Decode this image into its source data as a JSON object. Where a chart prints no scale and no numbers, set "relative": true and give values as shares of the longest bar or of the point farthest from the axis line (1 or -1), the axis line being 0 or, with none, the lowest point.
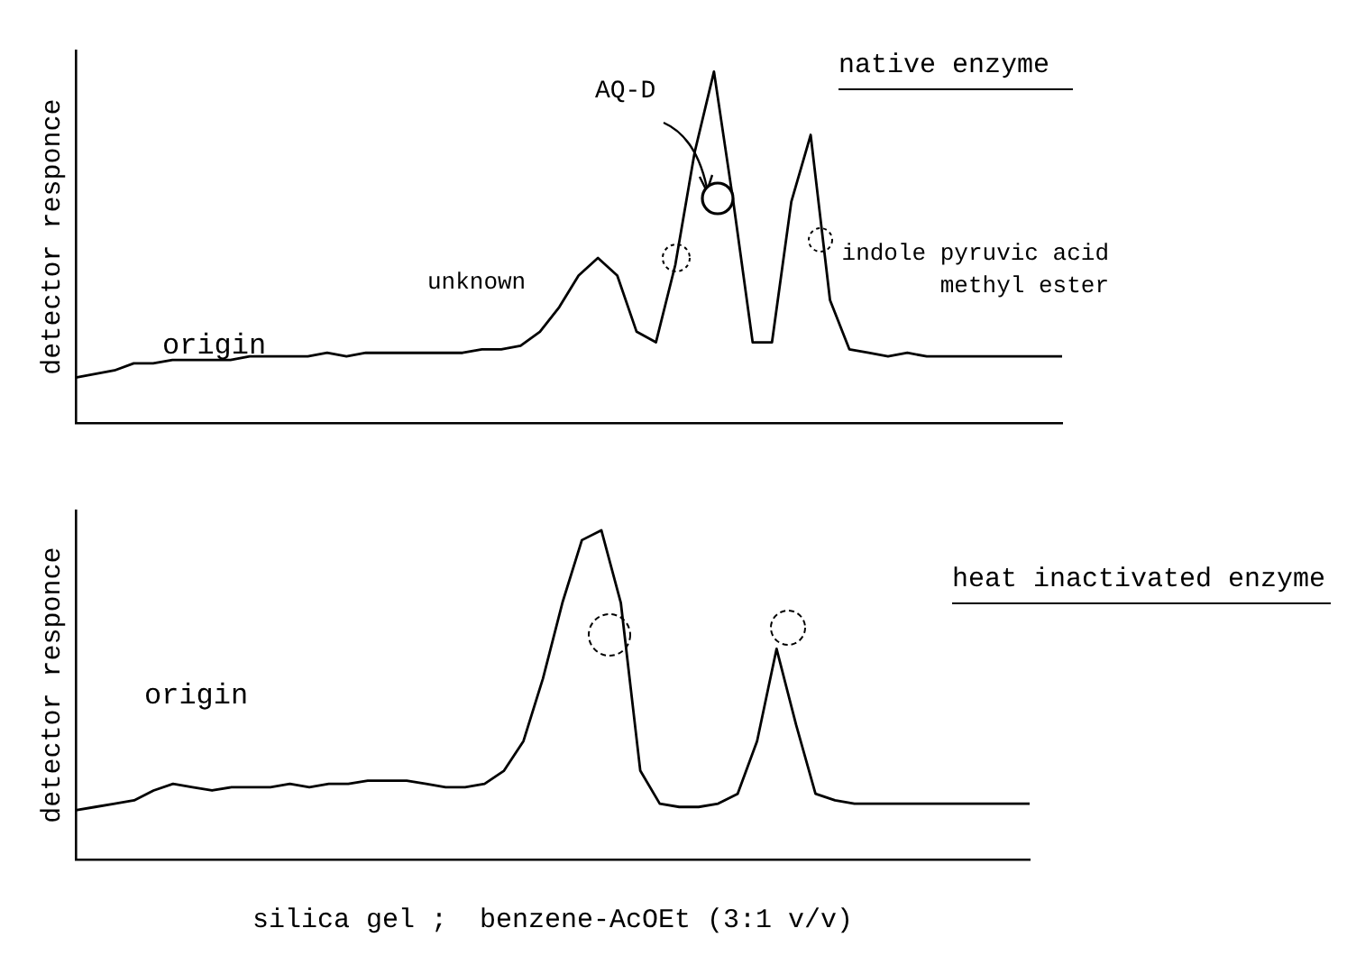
{
  "chart_data": [
    {
      "type": "line",
      "title": "native enzyme",
      "ylabel": "detector responce",
      "relative": true,
      "legend": false,
      "grid": false,
      "marker": "none",
      "annotations": [
        "AQ-D",
        "unknown",
        "indole pyruvic acid methyl ester",
        "origin"
      ],
      "categories": [
        null,
        null,
        null,
        null,
        null,
        null,
        null,
        null,
        null,
        null,
        null,
        null,
        null,
        null,
        null,
        null,
        null,
        null,
        null,
        null,
        null,
        null,
        null,
        null,
        null,
        null,
        null,
        null,
        null,
        null,
        null,
        null,
        null,
        null,
        null,
        null,
        null,
        null,
        null,
        null,
        null,
        null,
        null,
        null,
        null,
        null,
        null,
        null,
        null,
        null,
        null,
        null
      ],
      "series": [
        {
          "color": "#000000",
          "values": [
            0.13,
            0.14,
            0.15,
            0.17,
            0.17,
            0.18,
            0.18,
            0.18,
            0.18,
            0.19,
            0.19,
            0.19,
            0.19,
            0.2,
            0.19,
            0.2,
            0.2,
            0.2,
            0.2,
            0.2,
            0.2,
            0.21,
            0.21,
            0.22,
            0.26,
            0.33,
            0.42,
            0.47,
            0.42,
            0.26,
            0.23,
            0.45,
            0.77,
            1,
            0.63,
            0.23,
            0.23,
            0.63,
            0.82,
            0.35,
            0.21,
            0.2,
            0.19,
            0.2,
            0.19,
            0.19,
            0.19,
            0.19,
            0.19,
            0.19,
            0.19,
            0.19
          ]
        }
      ]
    },
    {
      "type": "line",
      "title": "heat inactivated enzyme",
      "ylabel": "detector responce",
      "xlabel": "silica gel ;  benzene-AcOEt (3:1 v/v)",
      "relative": true,
      "legend": false,
      "grid": false,
      "marker": "none",
      "annotations": [
        "origin"
      ],
      "categories": [
        null,
        null,
        null,
        null,
        null,
        null,
        null,
        null,
        null,
        null,
        null,
        null,
        null,
        null,
        null,
        null,
        null,
        null,
        null,
        null,
        null,
        null,
        null,
        null,
        null,
        null,
        null,
        null,
        null,
        null,
        null,
        null,
        null,
        null,
        null,
        null,
        null,
        null,
        null,
        null,
        null,
        null,
        null,
        null,
        null,
        null,
        null,
        null,
        null,
        null
      ],
      "series": [
        {
          "color": "#000000",
          "values": [
            0.15,
            0.16,
            0.17,
            0.18,
            0.21,
            0.23,
            0.22,
            0.21,
            0.22,
            0.22,
            0.22,
            0.23,
            0.22,
            0.23,
            0.23,
            0.24,
            0.24,
            0.24,
            0.23,
            0.22,
            0.22,
            0.23,
            0.27,
            0.36,
            0.55,
            0.78,
            0.97,
            1,
            0.78,
            0.27,
            0.17,
            0.16,
            0.16,
            0.17,
            0.2,
            0.36,
            0.64,
            0.41,
            0.2,
            0.18,
            0.17,
            0.17,
            0.17,
            0.17,
            0.17,
            0.17,
            0.17,
            0.17,
            0.17,
            0.17
          ]
        }
      ]
    }
  ]
}
